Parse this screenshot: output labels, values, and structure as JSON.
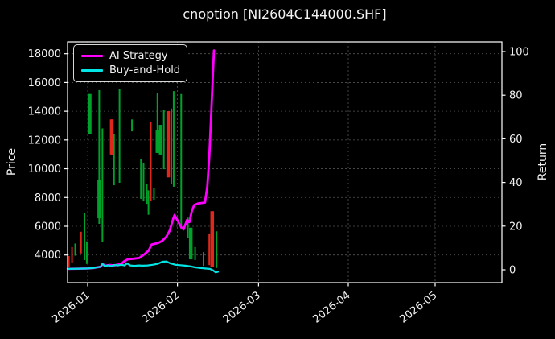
{
  "chart_data": {
    "type": "mixed",
    "subtypes": [
      "candlestick-high-low",
      "line"
    ],
    "title": "cnoption [NI2604C144000.SHF]",
    "background_color": "#000000",
    "text_color": "#f2f2f2",
    "grid": {
      "show": true,
      "color": "#6e6e6e",
      "style": "dashed"
    },
    "x_axis": {
      "tick_labels": [
        "2026-01",
        "2026-02",
        "2026-03",
        "2026-04",
        "2026-05"
      ],
      "tick_days": [
        0,
        31,
        59,
        90,
        120
      ],
      "range_days": [
        -6.9,
        143.1
      ],
      "label_rotation_deg": -38
    },
    "left_axis": {
      "label": "Price",
      "ticks": [
        4000,
        6000,
        8000,
        10000,
        12000,
        14000,
        16000,
        18000
      ],
      "range": [
        2080,
        18820
      ]
    },
    "right_axis": {
      "label": "Return",
      "ticks": [
        0,
        20,
        40,
        60,
        80,
        100
      ],
      "range": [
        -5.9,
        104.4
      ]
    },
    "legend": {
      "position": "upper left",
      "items": [
        {
          "label": "AI Strategy",
          "color": "#ff00ff"
        },
        {
          "label": "Buy-and-Hold",
          "color": "#00e5e5"
        }
      ]
    },
    "candles": {
      "up_color": "#00a22b",
      "down_color": "#df271c",
      "days_relative_to": "2026-01-01",
      "bars": [
        {
          "d": -6.5,
          "dir": "down",
          "high": 3930,
          "low": 3140
        },
        {
          "d": -5.4,
          "dir": "down",
          "high": 4550,
          "low": 3430
        },
        {
          "d": -4.3,
          "dir": "up",
          "high": 4800,
          "low": 3950
        },
        {
          "d": -2.3,
          "dir": "down",
          "high": 5620,
          "low": 4110
        },
        {
          "d": -1.1,
          "dir": "up",
          "high": 6900,
          "low": 3650
        },
        {
          "d": -0.3,
          "dir": "up",
          "high": 4950,
          "low": 3380
        },
        {
          "d": 0.7,
          "dir": "up",
          "high": 15200,
          "low": 12400,
          "body_high": 15200,
          "body_low": 12400
        },
        {
          "d": 4.0,
          "dir": "up",
          "high": 15460,
          "low": 6170,
          "body_high": 9250,
          "body_low": 6550
        },
        {
          "d": 5.1,
          "dir": "up",
          "high": 12800,
          "low": 4900
        },
        {
          "d": 8.3,
          "dir": "down",
          "high": 13430,
          "low": 10990,
          "body_high": 13430,
          "body_low": 10990
        },
        {
          "d": 9.1,
          "dir": "up",
          "high": 12400,
          "low": 8850
        },
        {
          "d": 11.0,
          "dir": "up",
          "high": 15570,
          "low": 9020
        },
        {
          "d": 15.3,
          "dir": "up",
          "high": 13430,
          "low": 12600
        },
        {
          "d": 18.4,
          "dir": "up",
          "high": 10700,
          "low": 7900
        },
        {
          "d": 19.3,
          "dir": "up",
          "high": 10370,
          "low": 7730
        },
        {
          "d": 20.4,
          "dir": "up",
          "high": 8960,
          "low": 7560
        },
        {
          "d": 21.0,
          "dir": "up",
          "high": 8500,
          "low": 6800
        },
        {
          "d": 21.8,
          "dir": "down",
          "high": 13230,
          "low": 7730
        },
        {
          "d": 22.9,
          "dir": "up",
          "high": 8680,
          "low": 7840
        },
        {
          "d": 24.1,
          "dir": "up",
          "high": 15290,
          "low": 11100,
          "body_high": 12660,
          "body_low": 11100
        },
        {
          "d": 25.2,
          "dir": "up",
          "high": 13050,
          "low": 10990,
          "body_high": 13050,
          "body_low": 10990
        },
        {
          "d": 26.3,
          "dir": "up",
          "high": 14060,
          "low": 9970
        },
        {
          "d": 27.8,
          "dir": "down",
          "high": 14000,
          "low": 9400,
          "body_high": 14000,
          "body_low": 9400
        },
        {
          "d": 28.9,
          "dir": "down",
          "high": 14190,
          "low": 8970
        },
        {
          "d": 29.7,
          "dir": "up",
          "high": 15400,
          "low": 8750
        },
        {
          "d": 32.3,
          "dir": "up",
          "high": 15200,
          "low": 5770
        },
        {
          "d": 34.6,
          "dir": "up",
          "high": 6600,
          "low": 5200
        },
        {
          "d": 35.6,
          "dir": "up",
          "high": 5900,
          "low": 3700,
          "body_high": 5900,
          "body_low": 3700
        },
        {
          "d": 37.1,
          "dir": "up",
          "high": 4550,
          "low": 3650
        },
        {
          "d": 40.0,
          "dir": "up",
          "high": 4200,
          "low": 3250
        },
        {
          "d": 42.0,
          "dir": "down",
          "high": 5500,
          "low": 3300
        },
        {
          "d": 43.0,
          "dir": "down",
          "high": 7050,
          "low": 3150,
          "body_high": 7050,
          "body_low": 3150
        },
        {
          "d": 44.5,
          "dir": "up",
          "high": 5650,
          "low": 3100
        }
      ]
    },
    "series": [
      {
        "name": "AI Strategy",
        "axis": "right",
        "color": "#ff00ff",
        "width": 2.8,
        "points": [
          [
            -6.9,
            0.4
          ],
          [
            -3,
            0.5
          ],
          [
            0,
            0.6
          ],
          [
            2,
            0.8
          ],
          [
            4.5,
            1.4
          ],
          [
            5.1,
            2.6
          ],
          [
            6.2,
            1.9
          ],
          [
            7.6,
            2.2
          ],
          [
            9.1,
            2.0
          ],
          [
            10.5,
            2.4
          ],
          [
            11.6,
            2.7
          ],
          [
            12.7,
            4.0
          ],
          [
            13.9,
            4.8
          ],
          [
            16.1,
            5.1
          ],
          [
            17.8,
            5.4
          ],
          [
            19.5,
            7.0
          ],
          [
            21,
            8.7
          ],
          [
            22.1,
            11.6
          ],
          [
            24.4,
            12.3
          ],
          [
            25.8,
            13.3
          ],
          [
            27.2,
            15.2
          ],
          [
            28.3,
            17.9
          ],
          [
            29.5,
            23.2
          ],
          [
            30,
            25.1
          ],
          [
            31.2,
            22.2
          ],
          [
            32.3,
            19.5
          ],
          [
            33.1,
            18.5
          ],
          [
            34.3,
            22.8
          ],
          [
            35.1,
            21.8
          ],
          [
            36,
            27.1
          ],
          [
            36.8,
            29.7
          ],
          [
            38.2,
            30.4
          ],
          [
            40.5,
            30.8
          ],
          [
            41.3,
            38
          ],
          [
            42,
            52
          ],
          [
            42.6,
            70
          ],
          [
            43.2,
            88
          ],
          [
            43.6,
            100.5
          ]
        ]
      },
      {
        "name": "Buy-and-Hold",
        "axis": "right",
        "color": "#00e5e5",
        "width": 2.2,
        "points": [
          [
            -6.9,
            0.4
          ],
          [
            -3,
            0.5
          ],
          [
            0,
            0.6
          ],
          [
            2,
            0.8
          ],
          [
            4.5,
            1.4
          ],
          [
            5.1,
            2.7
          ],
          [
            5.9,
            1.7
          ],
          [
            7.1,
            2.0
          ],
          [
            8.2,
            1.7
          ],
          [
            9.3,
            2.2
          ],
          [
            10.5,
            2.0
          ],
          [
            11.6,
            2.3
          ],
          [
            12.7,
            2.0
          ],
          [
            13.6,
            2.9
          ],
          [
            14.7,
            2.0
          ],
          [
            16.1,
            1.8
          ],
          [
            17.6,
            2.0
          ],
          [
            19,
            1.9
          ],
          [
            20.7,
            2.0
          ],
          [
            22.4,
            2.3
          ],
          [
            24.1,
            2.7
          ],
          [
            25.8,
            3.7
          ],
          [
            27.2,
            3.8
          ],
          [
            28.6,
            2.9
          ],
          [
            30.3,
            2.3
          ],
          [
            32,
            2.1
          ],
          [
            33.7,
            1.9
          ],
          [
            35.4,
            1.6
          ],
          [
            37.1,
            1.1
          ],
          [
            38.8,
            0.8
          ],
          [
            40.5,
            0.6
          ],
          [
            42.2,
            0.4
          ],
          [
            43.3,
            -0.3
          ],
          [
            44.2,
            -1.2
          ],
          [
            45,
            -0.9
          ]
        ]
      }
    ]
  }
}
